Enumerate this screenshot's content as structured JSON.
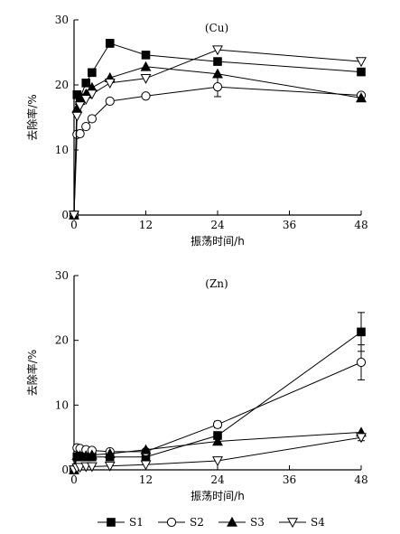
{
  "chart_data": [
    {
      "type": "line",
      "annotation": "(Cu)",
      "xlabel": "振荡时间/h",
      "ylabel": "去除率/%",
      "xlim": [
        0,
        48
      ],
      "ylim": [
        0,
        30
      ],
      "xticks": [
        0,
        12,
        24,
        36,
        48
      ],
      "yticks": [
        0,
        10,
        20,
        30
      ],
      "series": [
        {
          "name": "S1",
          "marker": "square",
          "x": [
            0,
            0.5,
            1,
            2,
            3,
            6,
            12,
            24,
            48
          ],
          "y": [
            0,
            18.5,
            18.0,
            20.3,
            21.9,
            26.4,
            24.6,
            23.6,
            22.0
          ],
          "err": [
            0,
            0,
            0,
            0,
            0,
            0.6,
            0,
            0,
            0
          ]
        },
        {
          "name": "S2",
          "marker": "circle",
          "x": [
            0,
            0.5,
            1,
            2,
            3,
            6,
            12,
            24,
            48
          ],
          "y": [
            0,
            12.4,
            12.5,
            13.6,
            14.8,
            17.5,
            18.3,
            19.7,
            18.4
          ],
          "err": [
            0,
            0,
            0,
            0,
            0,
            0,
            0,
            1.5,
            0
          ]
        },
        {
          "name": "S3",
          "marker": "triangle-up",
          "x": [
            0,
            0.5,
            1,
            2,
            3,
            6,
            12,
            24,
            48
          ],
          "y": [
            0,
            16.4,
            17.6,
            18.6,
            19.6,
            21.1,
            22.8,
            21.7,
            18.0
          ],
          "err": [
            0,
            0,
            0,
            0,
            0,
            0,
            0,
            0,
            0
          ]
        },
        {
          "name": "S4",
          "marker": "triangle-down",
          "x": [
            0,
            0.5,
            1,
            2,
            3,
            6,
            12,
            24,
            48
          ],
          "y": [
            0,
            15.2,
            16.8,
            17.8,
            18.6,
            20.3,
            21.0,
            25.4,
            23.6
          ],
          "err": [
            0,
            0,
            0,
            0,
            0,
            0,
            0,
            0,
            0
          ]
        }
      ]
    },
    {
      "type": "line",
      "annotation": "(Zn)",
      "xlabel": "振荡时间/h",
      "ylabel": "去除率/%",
      "xlim": [
        0,
        48
      ],
      "ylim": [
        0,
        30
      ],
      "xticks": [
        0,
        12,
        24,
        36,
        48
      ],
      "yticks": [
        0,
        10,
        20,
        30
      ],
      "series": [
        {
          "name": "S1",
          "marker": "square",
          "x": [
            0,
            0.5,
            1,
            2,
            3,
            6,
            12,
            24,
            48
          ],
          "y": [
            0,
            2.0,
            2.0,
            2.0,
            2.0,
            2.0,
            2.0,
            5.3,
            21.3
          ],
          "err": [
            0,
            0,
            0,
            0,
            0,
            0,
            0,
            0.5,
            3.0
          ]
        },
        {
          "name": "S2",
          "marker": "circle",
          "x": [
            0,
            0.5,
            1,
            2,
            3,
            6,
            12,
            24,
            48
          ],
          "y": [
            0,
            3.4,
            3.3,
            3.1,
            3.0,
            2.8,
            2.8,
            7.0,
            16.6
          ],
          "err": [
            0,
            0,
            0,
            0,
            0,
            0,
            0,
            0.5,
            2.7
          ]
        },
        {
          "name": "S3",
          "marker": "triangle-up",
          "x": [
            0,
            0.5,
            1,
            2,
            3,
            6,
            12,
            24,
            48
          ],
          "y": [
            0,
            2.2,
            2.2,
            2.2,
            2.3,
            2.5,
            3.1,
            4.4,
            5.8
          ],
          "err": [
            0,
            0,
            0,
            0,
            0,
            0,
            0,
            0,
            0
          ]
        },
        {
          "name": "S4",
          "marker": "triangle-down",
          "x": [
            0,
            0.5,
            1,
            2,
            3,
            6,
            12,
            24,
            48
          ],
          "y": [
            0,
            0.3,
            0.4,
            0.5,
            0.5,
            0.6,
            0.8,
            1.4,
            5.0
          ],
          "err": [
            0,
            0,
            0,
            0,
            0,
            0,
            0,
            0,
            0.5
          ]
        }
      ]
    }
  ],
  "legend": [
    {
      "name": "S1",
      "marker": "square"
    },
    {
      "name": "S2",
      "marker": "circle"
    },
    {
      "name": "S3",
      "marker": "triangle-up"
    },
    {
      "name": "S4",
      "marker": "triangle-down"
    }
  ]
}
